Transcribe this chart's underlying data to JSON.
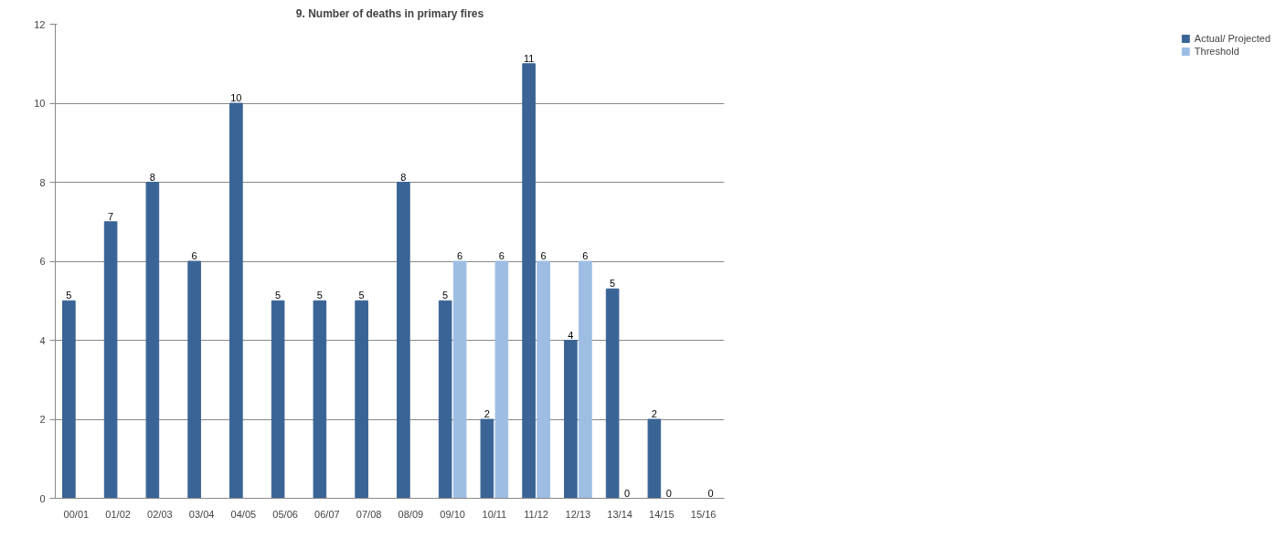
{
  "chart_data": {
    "type": "bar",
    "title": "9. Number of deaths in primary fires",
    "categories": [
      "00/01",
      "01/02",
      "02/03",
      "03/04",
      "04/05",
      "05/06",
      "06/07",
      "07/08",
      "08/09",
      "09/10",
      "10/11",
      "11/12",
      "12/13",
      "13/14",
      "14/15",
      "15/16"
    ],
    "series": [
      {
        "name": "Actual/ Projected",
        "color": "#3a6496",
        "values": [
          5,
          7,
          8,
          6,
          10,
          5,
          5,
          5,
          8,
          5,
          2,
          11,
          4,
          5.3,
          2,
          null
        ],
        "value_labels": [
          "5",
          "7",
          "8",
          "6",
          "10",
          "5",
          "5",
          "5",
          "8",
          "5",
          "2",
          "11",
          "4",
          "5",
          "2",
          null
        ]
      },
      {
        "name": "Threshold",
        "color": "#9dbde3",
        "values": [
          null,
          null,
          null,
          null,
          null,
          null,
          null,
          null,
          null,
          6,
          6,
          6,
          6,
          0,
          0,
          0
        ],
        "value_labels": [
          null,
          null,
          null,
          null,
          null,
          null,
          null,
          null,
          null,
          "6",
          "6",
          "6",
          "6",
          "0",
          "0",
          "0"
        ]
      }
    ],
    "ylim": [
      0,
      12
    ],
    "yticks": [
      0,
      2,
      4,
      6,
      8,
      10,
      12
    ],
    "grid": "y",
    "legend": "right"
  }
}
